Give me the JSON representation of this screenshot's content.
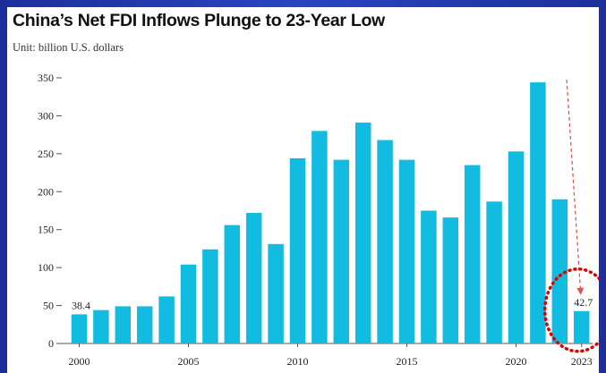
{
  "title": "China’s Net FDI Inflows Plunge to 23-Year Low",
  "subtitle": "Unit: billion U.S. dollars",
  "colors": {
    "bar": "#12bce0",
    "axis": "#555555",
    "annotation_arrow": "#d9534f",
    "highlight_circle": "#e00000",
    "background_frame": "#2a45c2"
  },
  "chart_data": {
    "type": "bar",
    "title": "China’s Net FDI Inflows Plunge to 23-Year Low",
    "subtitle": "Unit: billion U.S. dollars",
    "xlabel": "",
    "ylabel": "",
    "categories": [
      "2000",
      "2001",
      "2002",
      "2003",
      "2004",
      "2005",
      "2006",
      "2007",
      "2008",
      "2009",
      "2010",
      "2011",
      "2012",
      "2013",
      "2014",
      "2015",
      "2016",
      "2017",
      "2018",
      "2019",
      "2020",
      "2021",
      "2022",
      "2023"
    ],
    "values": [
      38.4,
      44,
      49,
      49,
      62,
      104,
      124,
      156,
      172,
      131,
      244,
      280,
      242,
      291,
      268,
      242,
      175,
      166,
      235,
      187,
      253,
      344,
      190,
      42.7
    ],
    "ylim": [
      0,
      350
    ],
    "yticks": [
      0,
      50,
      100,
      150,
      200,
      250,
      300,
      350
    ],
    "xtick_labels": [
      "2000",
      "2005",
      "2010",
      "2015",
      "2020",
      "2023"
    ],
    "data_labels": [
      {
        "category": "2000",
        "text": "38.4"
      },
      {
        "category": "2023",
        "text": "42.7"
      }
    ],
    "grid": false,
    "annotations": [
      {
        "type": "dashed-arrow",
        "from_category": "2022",
        "to_category": "2023"
      },
      {
        "type": "dotted-circle",
        "category": "2023"
      }
    ]
  }
}
